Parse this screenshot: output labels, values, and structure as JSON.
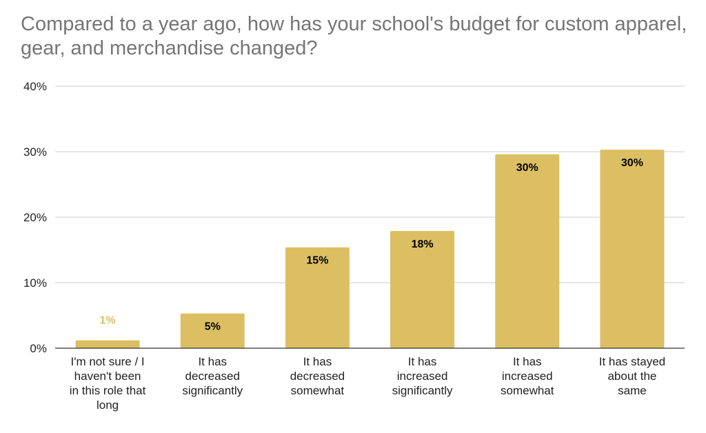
{
  "chart_data": {
    "type": "bar",
    "title": "Compared to a year ago, how has your school's budget for custom apparel, gear, and merchandise changed?",
    "categories": [
      [
        "I'm not sure / I",
        "haven't been",
        "in this role that",
        "long"
      ],
      [
        "It has",
        "decreased",
        "significantly"
      ],
      [
        "It has",
        "decreased",
        "somewhat"
      ],
      [
        "It has",
        "increased",
        "significantly"
      ],
      [
        "It has",
        "increased",
        "somewhat"
      ],
      [
        "It has stayed",
        "about the",
        "same"
      ]
    ],
    "values": [
      1.2,
      5.3,
      15.4,
      17.9,
      29.6,
      30.3
    ],
    "data_labels": [
      "1%",
      "5%",
      "15%",
      "18%",
      "30%",
      "30%"
    ],
    "yticks": [
      "0%",
      "10%",
      "20%",
      "30%",
      "40%"
    ],
    "ylim": [
      0,
      40
    ],
    "grid": true,
    "legend": "none",
    "bar_color": "#dcbf62",
    "label_color_inside": "#000000",
    "label_color_outside": "#dcbf62"
  }
}
